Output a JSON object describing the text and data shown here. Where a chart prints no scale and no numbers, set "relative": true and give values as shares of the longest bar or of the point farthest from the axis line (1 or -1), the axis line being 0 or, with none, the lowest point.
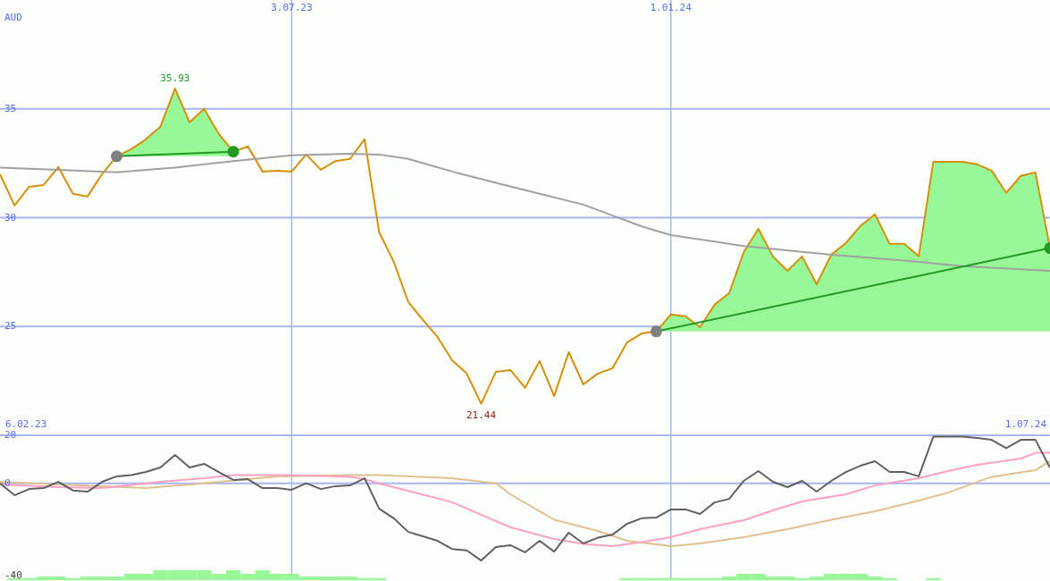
{
  "chart_data": [
    {
      "type": "line",
      "ylabel": "AUD",
      "xlim": [
        "2023-02-13",
        "2024-07-01"
      ],
      "xticks": [
        {
          "value": "2023-07-03",
          "label": "3.07.23"
        },
        {
          "value": "2024-01-01",
          "label": "1.01.24"
        }
      ],
      "ylim": [
        20,
        40
      ],
      "yticks": [
        25,
        30,
        35
      ],
      "grid": true,
      "marker": "none",
      "annotations": [
        {
          "text": "35.93",
          "x": "2023-05-08",
          "y": 35.93
        },
        {
          "text": "21.44",
          "x": "2023-10-02",
          "y": 21.44
        }
      ],
      "x": [
        "2023-02-13",
        "2023-02-20",
        "2023-02-27",
        "2023-03-06",
        "2023-03-13",
        "2023-03-20",
        "2023-03-27",
        "2023-04-03",
        "2023-04-10",
        "2023-04-17",
        "2023-04-24",
        "2023-05-01",
        "2023-05-08",
        "2023-05-15",
        "2023-05-22",
        "2023-05-29",
        "2023-06-05",
        "2023-06-12",
        "2023-06-19",
        "2023-06-26",
        "2023-07-03",
        "2023-07-10",
        "2023-07-17",
        "2023-07-24",
        "2023-07-31",
        "2023-08-07",
        "2023-08-14",
        "2023-08-21",
        "2023-08-28",
        "2023-09-04",
        "2023-09-11",
        "2023-09-18",
        "2023-09-25",
        "2023-10-02",
        "2023-10-09",
        "2023-10-16",
        "2023-10-23",
        "2023-10-30",
        "2023-11-06",
        "2023-11-13",
        "2023-11-20",
        "2023-11-27",
        "2023-12-04",
        "2023-12-11",
        "2023-12-18",
        "2023-12-25",
        "2024-01-01",
        "2024-01-08",
        "2024-01-15",
        "2024-01-22",
        "2024-01-29",
        "2024-02-05",
        "2024-02-12",
        "2024-02-19",
        "2024-02-26",
        "2024-03-04",
        "2024-03-11",
        "2024-03-18",
        "2024-03-25",
        "2024-04-01",
        "2024-04-08",
        "2024-04-15",
        "2024-04-22",
        "2024-04-29",
        "2024-05-06",
        "2024-05-13",
        "2024-05-20",
        "2024-05-27",
        "2024-06-03",
        "2024-06-10",
        "2024-06-17",
        "2024-06-24",
        "2024-07-01"
      ],
      "series": [
        {
          "color": "#d4900a",
          "values": [
            32.0,
            30.56,
            31.42,
            31.5,
            32.33,
            31.1,
            30.97,
            32.0,
            32.82,
            33.15,
            33.6,
            34.18,
            35.93,
            34.38,
            35.0,
            33.85,
            33.03,
            33.27,
            32.12,
            32.16,
            32.12,
            32.9,
            32.2,
            32.6,
            32.7,
            33.6,
            29.33,
            27.97,
            26.12,
            25.3,
            24.52,
            23.45,
            22.84,
            21.44,
            22.92,
            23.0,
            22.18,
            23.41,
            21.8,
            23.82,
            22.34,
            22.84,
            23.08,
            24.27,
            24.68,
            24.77,
            25.55,
            25.47,
            24.97,
            26.0,
            26.53,
            28.42,
            29.49,
            28.22,
            27.56,
            28.22,
            26.94,
            28.3,
            28.83,
            29.62,
            30.15,
            28.8,
            28.8,
            28.22,
            32.57,
            32.57,
            32.57,
            32.45,
            32.16,
            31.14,
            31.92,
            32.08,
            28.6
          ],
          "lower": [
            null,
            null,
            null,
            null,
            null,
            null,
            null,
            null,
            32.82,
            32.82,
            32.82,
            32.82,
            32.82,
            32.82,
            32.82,
            32.82,
            32.82,
            null,
            null,
            null,
            null,
            null,
            null,
            null,
            null,
            null,
            null,
            null,
            null,
            null,
            null,
            null,
            null,
            null,
            null,
            null,
            null,
            null,
            null,
            null,
            null,
            null,
            null,
            null,
            null,
            24.77,
            24.77,
            24.77,
            24.77,
            24.77,
            24.77,
            24.77,
            24.77,
            24.77,
            24.77,
            24.77,
            24.77,
            24.77,
            24.77,
            24.77,
            24.77,
            24.77,
            24.77,
            24.77,
            24.77,
            24.77,
            24.77,
            24.77,
            24.77,
            24.77,
            24.77,
            24.77,
            24.77
          ],
          "upper": [
            null,
            null,
            null,
            null,
            null,
            null,
            null,
            null,
            32.82,
            33.15,
            33.6,
            34.18,
            35.93,
            34.38,
            35.0,
            33.85,
            33.03,
            null,
            null,
            null,
            null,
            null,
            null,
            null,
            null,
            null,
            null,
            null,
            null,
            null,
            null,
            null,
            null,
            null,
            null,
            null,
            null,
            null,
            null,
            null,
            null,
            null,
            null,
            null,
            null,
            24.77,
            25.55,
            25.47,
            24.97,
            26.0,
            26.53,
            28.42,
            29.49,
            28.22,
            27.56,
            28.22,
            26.94,
            28.3,
            28.83,
            29.62,
            30.15,
            28.8,
            28.8,
            28.22,
            32.57,
            32.57,
            32.57,
            32.45,
            32.16,
            31.14,
            31.92,
            32.08,
            28.6
          ]
        },
        {
          "color": "#a0a0a0",
          "x": [
            "2023-02-13",
            "2023-03-13",
            "2023-04-10",
            "2023-05-08",
            "2023-06-05",
            "2023-07-03",
            "2023-07-31",
            "2023-08-14",
            "2023-08-28",
            "2023-09-18",
            "2023-10-09",
            "2023-10-30",
            "2023-11-20",
            "2023-12-04",
            "2023-12-18",
            "2024-01-01",
            "2024-01-22",
            "2024-02-05",
            "2024-03-18",
            "2024-04-29",
            "2024-05-20",
            "2024-07-01"
          ],
          "values": [
            32.3,
            32.2,
            32.08,
            32.3,
            32.6,
            32.86,
            32.94,
            32.9,
            32.7,
            32.12,
            31.6,
            31.1,
            30.6,
            30.1,
            29.6,
            29.2,
            28.9,
            28.7,
            28.3,
            27.97,
            27.77,
            27.56
          ]
        },
        {
          "color": "#229922",
          "x": [
            "2023-04-10",
            "2023-06-05"
          ],
          "values": [
            32.82,
            33.03
          ]
        },
        {
          "color": "#229922",
          "x": [
            "2023-12-25",
            "2024-07-01"
          ],
          "values": [
            24.77,
            28.6
          ]
        },
        {
          "type": "scatter",
          "color": "#808080",
          "marker": "circle",
          "x": [
            "2023-04-10",
            "2023-12-25"
          ],
          "values": [
            32.82,
            24.77
          ]
        },
        {
          "type": "scatter",
          "color": "#229922",
          "marker": "circle",
          "x": [
            "2023-06-05",
            "2024-07-01"
          ],
          "values": [
            33.03,
            28.6
          ]
        }
      ]
    },
    {
      "type": "line",
      "xlim": [
        "2023-02-13",
        "2024-07-01"
      ],
      "xticks": [
        {
          "value": "2023-07-03",
          "label": null
        },
        {
          "value": "2024-01-01",
          "label": null
        }
      ],
      "ylim": [
        -40,
        20
      ],
      "yticks": [
        -40,
        0,
        20
      ],
      "grid": "x",
      "ref_lines": [
        {
          "axis": "y",
          "value": 0
        },
        {
          "axis": "y",
          "value": 20
        }
      ],
      "tick_labels": "y",
      "marker": "none",
      "annotations": [
        "6.02.23",
        "1.07.24"
      ],
      "x": [
        "2023-02-13",
        "2023-02-20",
        "2023-02-27",
        "2023-03-06",
        "2023-03-13",
        "2023-03-20",
        "2023-03-27",
        "2023-04-03",
        "2023-04-10",
        "2023-04-17",
        "2023-04-24",
        "2023-05-01",
        "2023-05-08",
        "2023-05-15",
        "2023-05-22",
        "2023-05-29",
        "2023-06-05",
        "2023-06-12",
        "2023-06-19",
        "2023-06-26",
        "2023-07-03",
        "2023-07-10",
        "2023-07-17",
        "2023-07-24",
        "2023-07-31",
        "2023-08-07",
        "2023-08-14",
        "2023-08-21",
        "2023-08-28",
        "2023-09-04",
        "2023-09-11",
        "2023-09-18",
        "2023-09-25",
        "2023-10-02",
        "2023-10-09",
        "2023-10-16",
        "2023-10-23",
        "2023-10-30",
        "2023-11-06",
        "2023-11-13",
        "2023-11-20",
        "2023-11-27",
        "2023-12-04",
        "2023-12-11",
        "2023-12-18",
        "2023-12-25",
        "2024-01-01",
        "2024-01-08",
        "2024-01-15",
        "2024-01-22",
        "2024-01-29",
        "2024-02-05",
        "2024-02-12",
        "2024-02-19",
        "2024-02-26",
        "2024-03-04",
        "2024-03-11",
        "2024-03-18",
        "2024-03-25",
        "2024-04-01",
        "2024-04-08",
        "2024-04-15",
        "2024-04-22",
        "2024-04-29",
        "2024-05-06",
        "2024-05-13",
        "2024-05-20",
        "2024-05-27",
        "2024-06-03",
        "2024-06-10",
        "2024-06-17",
        "2024-06-24",
        "2024-07-01"
      ],
      "series": [
        {
          "color": "#e0c090",
          "x": [
            "2023-02-13",
            "2023-03-13",
            "2023-04-24",
            "2023-05-22",
            "2023-06-26",
            "2023-07-31",
            "2023-08-14",
            "2023-09-18",
            "2023-10-09",
            "2023-10-16",
            "2023-11-06",
            "2023-11-27",
            "2023-12-11",
            "2024-01-01",
            "2024-01-15",
            "2024-02-05",
            "2024-02-26",
            "2024-03-18",
            "2024-04-08",
            "2024-04-29",
            "2024-05-13",
            "2024-06-03",
            "2024-06-24",
            "2024-07-01"
          ],
          "values": [
            0.6,
            -0.5,
            -2,
            0,
            2.9,
            3.4,
            3.4,
            2.1,
            0,
            -4.6,
            -15.2,
            -19.9,
            -24,
            -26.2,
            -25.1,
            -22.5,
            -19.1,
            -15.2,
            -11.7,
            -7.2,
            -3.9,
            2.7,
            5.5,
            9.2
          ]
        },
        {
          "color": "#ffa0c0",
          "x": [
            "2023-02-13",
            "2023-03-13",
            "2023-04-03",
            "2023-05-01",
            "2023-05-22",
            "2023-06-05",
            "2023-07-03",
            "2023-07-31",
            "2023-08-07",
            "2023-08-14",
            "2023-09-18",
            "2023-10-16",
            "2023-11-06",
            "2023-11-20",
            "2023-12-04",
            "2023-12-18",
            "2024-01-01",
            "2024-01-15",
            "2024-02-05",
            "2024-02-19",
            "2024-03-04",
            "2024-03-25",
            "2024-04-08",
            "2024-04-29",
            "2024-05-13",
            "2024-05-27",
            "2024-06-17",
            "2024-06-24",
            "2024-07-01"
          ],
          "values": [
            -0.5,
            -1.6,
            -2,
            0.6,
            2.1,
            3.4,
            3.4,
            2.7,
            1.7,
            0,
            -7.9,
            -18.4,
            -23.2,
            -25.3,
            -26.2,
            -24.5,
            -22.5,
            -19.1,
            -15.4,
            -11.3,
            -7.6,
            -4.6,
            -0.9,
            2.1,
            5.1,
            7.7,
            10.3,
            12.7,
            12.7
          ]
        },
        {
          "color": "#606060",
          "values": [
            0,
            -5,
            -2.4,
            -2,
            0.6,
            -3,
            -3.5,
            0.6,
            2.9,
            3.4,
            4.7,
            6.6,
            11.8,
            6.6,
            8.1,
            4.7,
            1.4,
            1.7,
            -2,
            -2,
            -2.7,
            0,
            -2.4,
            -1.2,
            -0.9,
            2.1,
            -10.6,
            -14.6,
            -20.3,
            -22.1,
            -24,
            -27.4,
            -28,
            -32.2,
            -26.6,
            -25.8,
            -28.8,
            -24,
            -28.5,
            -20.6,
            -25.1,
            -22.7,
            -21.4,
            -16.9,
            -14.6,
            -14.3,
            -10.9,
            -10.9,
            -12.8,
            -8,
            -6.5,
            1,
            5.1,
            0.6,
            -1.6,
            1,
            -3.5,
            1,
            4.7,
            7.3,
            9.2,
            4.7,
            4.7,
            2.9,
            19.4,
            19.4,
            19.4,
            18.9,
            18.1,
            14.6,
            18.1,
            18.1,
            6.5
          ]
        }
      ]
    },
    {
      "type": "bar",
      "relative": true,
      "xlim": [
        "2023-02-13",
        "2024-07-01"
      ],
      "color": "#98f898",
      "x": [
        "2023-02-20",
        "2023-02-27",
        "2023-03-06",
        "2023-03-13",
        "2023-03-20",
        "2023-03-27",
        "2023-04-03",
        "2023-04-10",
        "2023-04-17",
        "2023-04-24",
        "2023-05-01",
        "2023-05-08",
        "2023-05-15",
        "2023-05-22",
        "2023-05-29",
        "2023-06-05",
        "2023-06-12",
        "2023-06-19",
        "2023-06-26",
        "2023-07-03",
        "2023-07-10",
        "2023-07-17",
        "2023-07-24",
        "2023-07-31",
        "2023-08-07",
        "2023-08-14",
        "2023-12-11",
        "2023-12-18",
        "2023-12-25",
        "2024-01-01",
        "2024-01-08",
        "2024-01-15",
        "2024-01-22",
        "2024-01-29",
        "2024-02-05",
        "2024-02-12",
        "2024-02-19",
        "2024-02-26",
        "2024-03-04",
        "2024-03-11",
        "2024-03-18",
        "2024-03-25",
        "2024-04-01",
        "2024-04-08",
        "2024-04-15",
        "2024-05-06"
      ],
      "values": [
        0.2,
        0.2,
        0.36,
        0.36,
        0.2,
        0.36,
        0.36,
        0.36,
        0.64,
        0.64,
        1,
        1,
        1,
        1,
        0.64,
        1,
        0.64,
        1,
        0.64,
        0.64,
        0.36,
        0.36,
        0.36,
        0.36,
        0.2,
        0.2,
        0.2,
        0.2,
        0.2,
        0.2,
        0.2,
        0.2,
        0.2,
        0.36,
        0.64,
        0.64,
        0.36,
        0.36,
        0.2,
        0.36,
        0.64,
        0.64,
        0.64,
        0.36,
        0.2,
        0.2
      ]
    }
  ]
}
